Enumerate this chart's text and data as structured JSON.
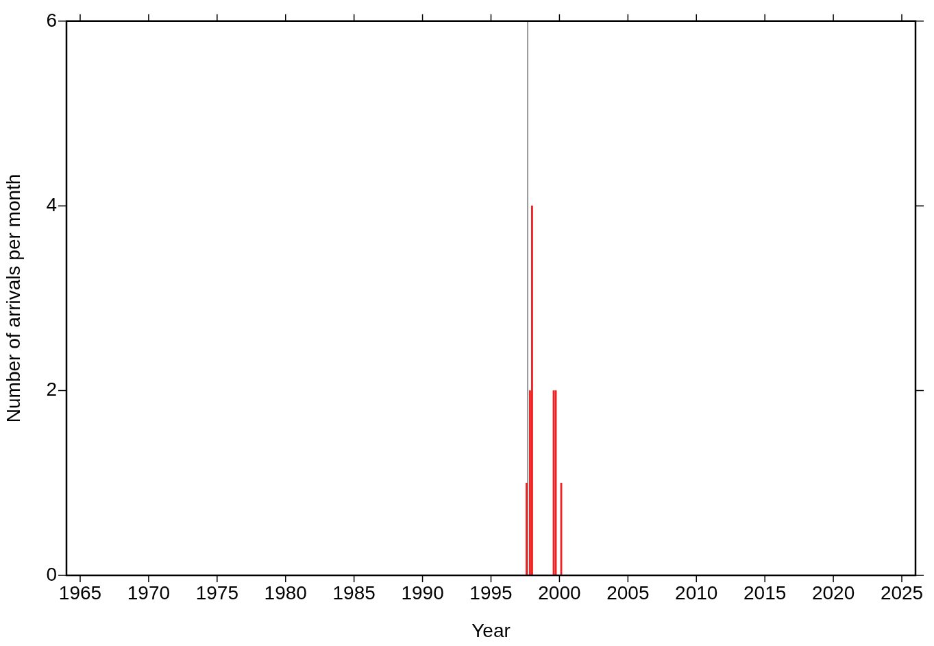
{
  "chart_data": {
    "type": "bar",
    "xlabel": "Year",
    "ylabel": "Number of arrivals per month",
    "x": [
      1997.6,
      1997.85,
      1998.0,
      1999.58,
      1999.73,
      2000.13
    ],
    "values": [
      1,
      2,
      4,
      2,
      2,
      1
    ],
    "color": "#ee2222",
    "xlim": [
      1964,
      2026
    ],
    "xticks": [
      1965,
      1970,
      1975,
      1980,
      1985,
      1990,
      1995,
      2000,
      2005,
      2010,
      2015,
      2020,
      2025
    ],
    "ylim": [
      0,
      6
    ],
    "yticks": [
      0,
      2,
      4,
      6
    ],
    "grid": false,
    "legend": false,
    "ref_lines": [
      {
        "axis": "x",
        "value": 1997.68,
        "color": "#333333"
      }
    ]
  }
}
